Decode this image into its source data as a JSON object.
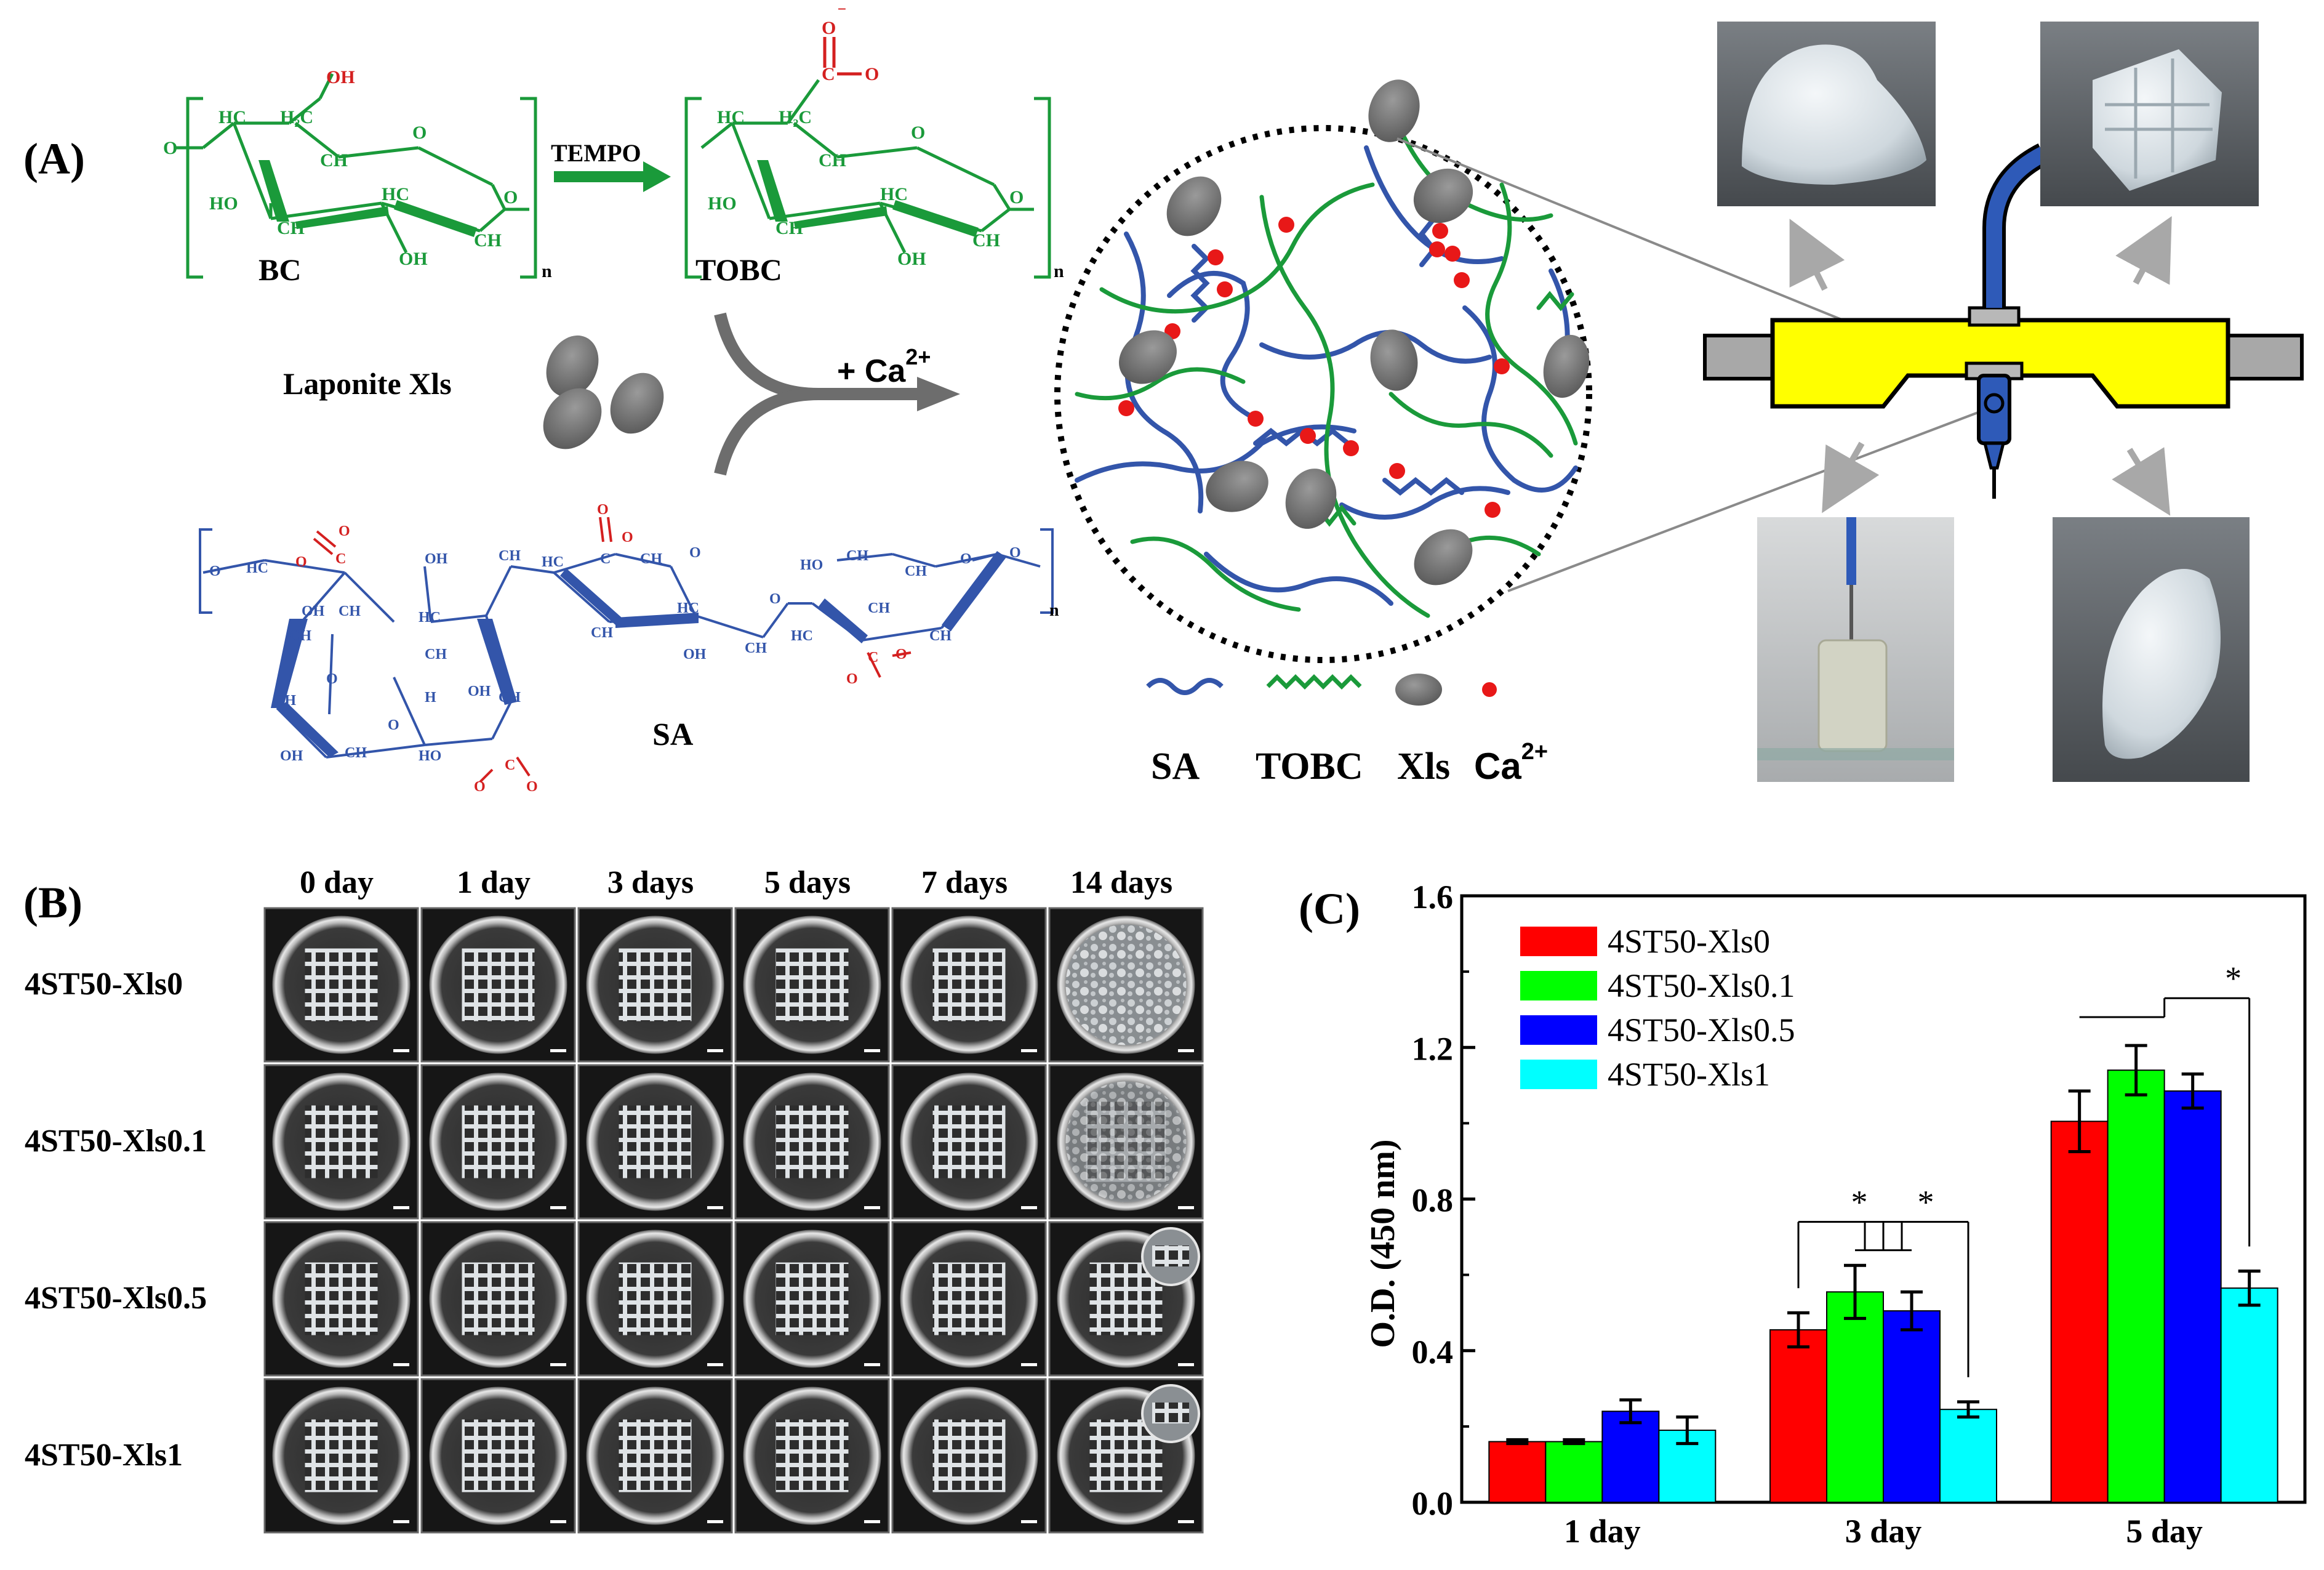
{
  "panelA": {
    "label": "(A)",
    "bc_label": "BC",
    "tobc_label": "TOBC",
    "tempo_label": "TEMPO",
    "laponite_label": "Laponite Xls",
    "ca_label": "+ Ca",
    "ca_sup": "2+",
    "sa_label": "SA",
    "subscript_n": "n",
    "bc_atoms": [
      "OH",
      "H₂C",
      "HC",
      "CH",
      "O",
      "HO",
      "CH",
      "HC",
      "OH",
      "CH",
      "O"
    ],
    "tobc_atoms": [
      "O",
      "⁻",
      "C",
      "O",
      "H₂C",
      "HC",
      "CH",
      "O",
      "HO",
      "CH",
      "HC",
      "OH",
      "CH",
      "O"
    ],
    "legend": {
      "sa": "SA",
      "tobc": "TOBC",
      "xls": "Xls",
      "ca": "Ca",
      "ca_sup": "2+"
    },
    "colors": {
      "green": "#1a9a3a",
      "blue": "#3355aa",
      "red": "#d42020",
      "gray": "#707070",
      "yellow": "#ffff00"
    }
  },
  "panelB": {
    "label": "(B)",
    "columns": [
      "0 day",
      "1 day",
      "3 days",
      "5 days",
      "7 days",
      "14 days"
    ],
    "rows": [
      "4ST50-Xls0",
      "4ST50-Xls0.1",
      "4ST50-Xls0.5",
      "4ST50-Xls1"
    ]
  },
  "panelC": {
    "label": "(C)",
    "chart_data": {
      "type": "bar",
      "categories": [
        "1 day",
        "3 day",
        "5 day"
      ],
      "series": [
        {
          "name": "4ST50-Xls0",
          "color": "#ff0000",
          "values": [
            0.16,
            0.455,
            1.005
          ],
          "errors": [
            0.005,
            0.045,
            0.08
          ]
        },
        {
          "name": "4ST50-Xls0.1",
          "color": "#00ff00",
          "values": [
            0.16,
            0.555,
            1.14
          ],
          "errors": [
            0.005,
            0.07,
            0.065
          ]
        },
        {
          "name": "4ST50-Xls0.5",
          "color": "#0000ff",
          "values": [
            0.24,
            0.505,
            1.085
          ],
          "errors": [
            0.03,
            0.05,
            0.045
          ]
        },
        {
          "name": "4ST50-Xls1",
          "color": "#00ffff",
          "values": [
            0.19,
            0.245,
            0.565
          ],
          "errors": [
            0.035,
            0.02,
            0.045
          ]
        }
      ],
      "ylabel": "O.D. (450 nm)",
      "ylim": [
        0.0,
        1.6
      ],
      "yticks": [
        "0.0",
        "0.4",
        "0.8",
        "1.2",
        "1.6"
      ],
      "significance": [
        "*",
        "*",
        "*"
      ],
      "legend_position": "top-left"
    }
  }
}
